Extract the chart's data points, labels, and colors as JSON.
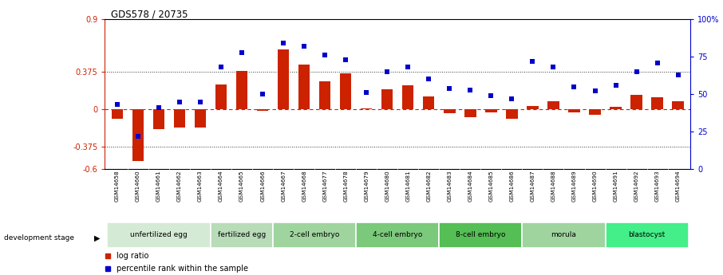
{
  "title": "GDS578 / 20735",
  "samples": [
    "GSM14658",
    "GSM14660",
    "GSM14661",
    "GSM14662",
    "GSM14663",
    "GSM14664",
    "GSM14665",
    "GSM14666",
    "GSM14667",
    "GSM14668",
    "GSM14677",
    "GSM14678",
    "GSM14679",
    "GSM14680",
    "GSM14681",
    "GSM14682",
    "GSM14683",
    "GSM14684",
    "GSM14685",
    "GSM14686",
    "GSM14687",
    "GSM14688",
    "GSM14689",
    "GSM14690",
    "GSM14691",
    "GSM14692",
    "GSM14693",
    "GSM14694"
  ],
  "log_ratio": [
    -0.1,
    -0.52,
    -0.2,
    -0.18,
    -0.18,
    0.25,
    0.38,
    -0.02,
    0.6,
    0.45,
    0.28,
    0.36,
    0.01,
    0.2,
    0.24,
    0.13,
    -0.04,
    -0.08,
    -0.03,
    -0.1,
    0.03,
    0.08,
    -0.03,
    -0.06,
    0.02,
    0.14,
    0.12,
    0.08
  ],
  "percentile_rank": [
    43,
    22,
    41,
    45,
    45,
    68,
    78,
    50,
    84,
    82,
    76,
    73,
    51,
    65,
    68,
    60,
    54,
    53,
    49,
    47,
    72,
    68,
    55,
    52,
    56,
    65,
    71,
    63
  ],
  "stages": [
    {
      "label": "unfertilized egg",
      "start": 0,
      "end": 5,
      "color": "#d5ead5"
    },
    {
      "label": "fertilized egg",
      "start": 5,
      "end": 8,
      "color": "#b8dbb8"
    },
    {
      "label": "2-cell embryo",
      "start": 8,
      "end": 12,
      "color": "#9fd49f"
    },
    {
      "label": "4-cell embryo",
      "start": 12,
      "end": 16,
      "color": "#7bc97b"
    },
    {
      "label": "8-cell embryo",
      "start": 16,
      "end": 20,
      "color": "#55be55"
    },
    {
      "label": "morula",
      "start": 20,
      "end": 24,
      "color": "#9fd49f"
    },
    {
      "label": "blastocyst",
      "start": 24,
      "end": 28,
      "color": "#44ee88"
    }
  ],
  "ylim_left": [
    -0.6,
    0.9
  ],
  "ylim_right": [
    0,
    100
  ],
  "yticks_left": [
    -0.6,
    -0.375,
    0.0,
    0.375,
    0.9
  ],
  "ytick_labels_left": [
    "-0.6",
    "-0.375",
    "0",
    "0.375",
    "0.9"
  ],
  "yticks_right": [
    0,
    25,
    50,
    75,
    100
  ],
  "ytick_labels_right": [
    "0",
    "25",
    "50",
    "75",
    "100%"
  ],
  "bar_color": "#cc2200",
  "dot_color": "#0000cc",
  "hline_color": "#cc2200",
  "dotted_color": "#333333",
  "legend_items": [
    {
      "label": "log ratio",
      "color": "#cc2200"
    },
    {
      "label": "percentile rank within the sample",
      "color": "#0000cc"
    }
  ]
}
